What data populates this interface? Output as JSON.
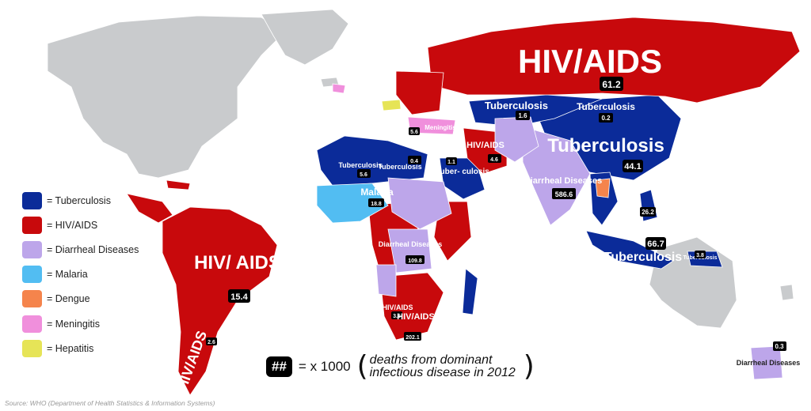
{
  "legend": {
    "items": [
      {
        "label": "= Tuberculosis",
        "color": "#0b2b99"
      },
      {
        "label": "= HIV/AIDS",
        "color": "#c8090c"
      },
      {
        "label": "= Diarrheal Diseases",
        "color": "#bda6ea"
      },
      {
        "label": "= Malaria",
        "color": "#52bdf2"
      },
      {
        "label": "= Dengue",
        "color": "#f5844c"
      },
      {
        "label": "= Meningitis",
        "color": "#f08fdc"
      },
      {
        "label": "= Hepatitis",
        "color": "#e6e457"
      }
    ]
  },
  "key": {
    "symbol": "##",
    "multiplier": "= x 1000",
    "open_paren": "(",
    "note": "deaths from dominant\ninfectious disease in 2012",
    "close_paren": ")"
  },
  "source": "Source: WHO (Department of Health Statistics & Information Systems)",
  "map": {
    "base_color": "#c9cbcd",
    "regions": [
      {
        "label": "HIV/AIDS",
        "value": "61.2"
      },
      {
        "label": "Tuberculosis",
        "value": "1.6"
      },
      {
        "label": "Tuberculosis",
        "value": "0.2"
      },
      {
        "label": "Tuberculosis",
        "value": "44.1"
      },
      {
        "label": "Diarrheal Diseases",
        "value": "586.6"
      },
      {
        "label": "HIV/ AIDS",
        "value": "15.4"
      },
      {
        "label": "HIV/AIDS",
        "value": "2.6"
      },
      {
        "label": "Tuberculosis",
        "value": "66.7"
      },
      {
        "label": "Tuberculosis",
        "value": "3.8"
      },
      {
        "label": "Tuberculosis",
        "value": "5.6"
      },
      {
        "label": "Tuberculosis",
        "value": "0.4"
      },
      {
        "label": "Malaria",
        "value": "18.8"
      },
      {
        "label": "Diarrheal Diseases",
        "value": "109.8"
      },
      {
        "label": "HIV/AIDS",
        "value": "4.6"
      },
      {
        "label": "Tuber- culosis",
        "value": "1.1"
      },
      {
        "label": "Meningitis",
        "value": "5.6"
      },
      {
        "label": "HIV/AIDS",
        "value": "3.6"
      },
      {
        "label": "Diarrheal Diseases",
        "value": "0.3"
      },
      {
        "label": "HIV/AIDS",
        "value": "202.1"
      },
      {
        "label": "Tuberculosis",
        "value": "26.2"
      }
    ]
  }
}
